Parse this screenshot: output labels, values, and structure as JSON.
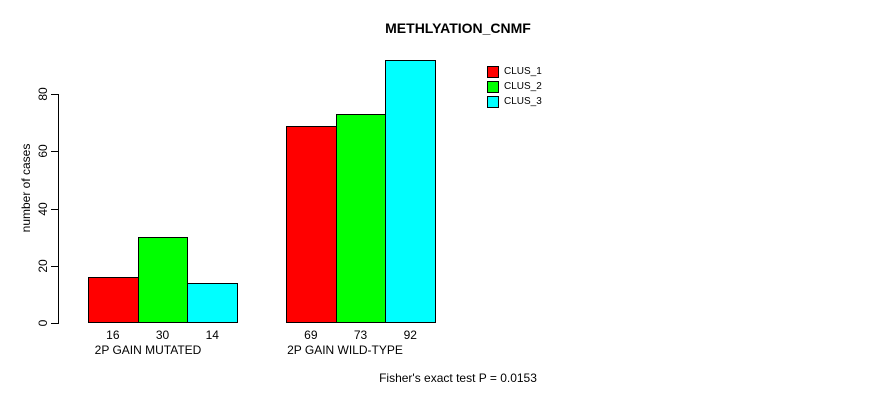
{
  "page": {
    "background_color": "#ffffff",
    "text_color": "#000000"
  },
  "chart_data": {
    "type": "bar",
    "title": "METHLYATION_CNMF",
    "ylabel": "number of cases",
    "xlabel": "",
    "ylim": [
      0,
      92
    ],
    "yticks": [
      0,
      20,
      40,
      60,
      80
    ],
    "grid": false,
    "categories": [
      "2P GAIN MUTATED",
      "2P GAIN WILD-TYPE"
    ],
    "series": [
      {
        "name": "CLUS_1",
        "color": "#FF0000",
        "values": [
          16,
          69
        ]
      },
      {
        "name": "CLUS_2",
        "color": "#00FF00",
        "values": [
          30,
          73
        ]
      },
      {
        "name": "CLUS_3",
        "color": "#00FFFF",
        "values": [
          14,
          92
        ]
      }
    ],
    "bar_value_labels": [
      [
        16,
        30,
        14
      ],
      [
        69,
        73,
        92
      ]
    ],
    "legend": {
      "position": "top-right",
      "entries": [
        {
          "label": "CLUS_1",
          "color": "#FF0000"
        },
        {
          "label": "CLUS_2",
          "color": "#00FF00"
        },
        {
          "label": "CLUS_3",
          "color": "#00FFFF"
        }
      ]
    },
    "annotation": "Fisher's exact test P = 0.0153"
  }
}
